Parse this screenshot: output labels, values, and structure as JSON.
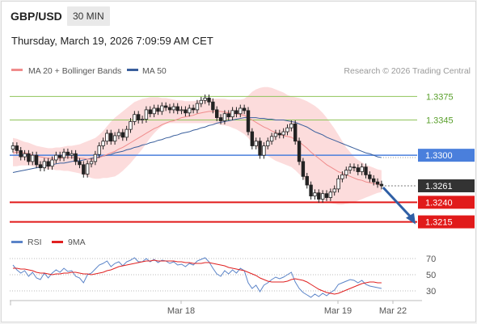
{
  "header": {
    "pair": "GBP/USD",
    "timeframe": "30 MIN",
    "datetime": "Thursday, March 19, 2026 7:09:59 AM CET"
  },
  "legend": {
    "ma20_bb": "MA 20 + Bollinger Bands",
    "ma50": "MA 50",
    "credit": "Research © 2026 Trading Central",
    "rsi": "RSI",
    "rsi_ma": "9MA"
  },
  "colors": {
    "ma20": "#f08c8c",
    "bb_fill": "#fbd6d6",
    "ma50": "#3a5f9c",
    "resistance": "#8fc45a",
    "pivot": "#4a7fdc",
    "support": "#e11a1a",
    "current": "#333333",
    "arrow": "#2f5fa5",
    "rsi": "#5b84c8",
    "rsi_ma": "#e02020"
  },
  "chart_data": [
    {
      "type": "candlestick",
      "ylim": [
        1.3195,
        1.3395
      ],
      "x_labels": [
        "Mar 18",
        "Mar 19",
        "Mar 22"
      ],
      "levels": [
        {
          "value": 1.3375,
          "label": "1.3375",
          "kind": "resistance"
        },
        {
          "value": 1.3345,
          "label": "1.3345",
          "kind": "resistance"
        },
        {
          "value": 1.33,
          "label": "1.3300",
          "kind": "pivot"
        },
        {
          "value": 1.3261,
          "label": "1.3261",
          "kind": "current"
        },
        {
          "value": 1.324,
          "label": "1.3240",
          "kind": "support"
        },
        {
          "value": 1.3215,
          "label": "1.3215",
          "kind": "support"
        }
      ],
      "close": [
        1.3312,
        1.3306,
        1.3298,
        1.3302,
        1.3292,
        1.33,
        1.3288,
        1.3284,
        1.3292,
        1.3286,
        1.3294,
        1.33,
        1.3297,
        1.3304,
        1.33,
        1.3302,
        1.3292,
        1.3288,
        1.3276,
        1.3289,
        1.3292,
        1.3301,
        1.3312,
        1.3318,
        1.3328,
        1.3318,
        1.3325,
        1.3329,
        1.3323,
        1.3333,
        1.3343,
        1.3352,
        1.3345,
        1.3346,
        1.3358,
        1.3353,
        1.336,
        1.3356,
        1.3363,
        1.3361,
        1.3358,
        1.3362,
        1.3357,
        1.3358,
        1.3354,
        1.336,
        1.3358,
        1.3366,
        1.337,
        1.3373,
        1.3368,
        1.3358,
        1.3348,
        1.3344,
        1.3353,
        1.3349,
        1.3357,
        1.3353,
        1.336,
        1.3357,
        1.333,
        1.3312,
        1.3318,
        1.33,
        1.3312,
        1.3318,
        1.3324,
        1.3328,
        1.3326,
        1.333,
        1.3335,
        1.334,
        1.3318,
        1.3292,
        1.3273,
        1.3262,
        1.3248,
        1.3252,
        1.3244,
        1.3251,
        1.3246,
        1.3253,
        1.3257,
        1.327,
        1.3275,
        1.3281,
        1.3285,
        1.3284,
        1.3279,
        1.3285,
        1.3275,
        1.327,
        1.3266,
        1.3263,
        1.3261
      ],
      "ma20": [
        1.3303,
        1.3304,
        1.3304,
        1.3303,
        1.3302,
        1.33,
        1.3299,
        1.3298,
        1.3297,
        1.3296,
        1.3296,
        1.3296,
        1.3296,
        1.3297,
        1.3297,
        1.3297,
        1.3297,
        1.3296,
        1.3296,
        1.3295,
        1.3295,
        1.3295,
        1.3297,
        1.3299,
        1.3301,
        1.3303,
        1.3305,
        1.3308,
        1.331,
        1.3313,
        1.3316,
        1.3319,
        1.3322,
        1.3325,
        1.3328,
        1.3331,
        1.3334,
        1.3336,
        1.3339,
        1.3341,
        1.3343,
        1.3344,
        1.3346,
        1.3348,
        1.3349,
        1.335,
        1.3351,
        1.3353,
        1.3354,
        1.3355,
        1.3356,
        1.3356,
        1.3356,
        1.3356,
        1.3355,
        1.3354,
        1.3354,
        1.3353,
        1.3352,
        1.3351,
        1.3348,
        1.3345,
        1.3342,
        1.3339,
        1.3336,
        1.3334,
        1.3331,
        1.3329,
        1.3327,
        1.3325,
        1.3324,
        1.3323,
        1.332,
        1.3317,
        1.3313,
        1.3309,
        1.3304,
        1.33,
        1.3296,
        1.3292,
        1.3288,
        1.3285,
        1.3282,
        1.3279,
        1.3277,
        1.3275,
        1.3273,
        1.3271,
        1.3269,
        1.3268,
        1.3266,
        1.3265,
        1.3264,
        1.3263,
        1.3262
      ],
      "bb_upper": [
        1.3322,
        1.3321,
        1.3319,
        1.3317,
        1.3316,
        1.3314,
        1.3312,
        1.3311,
        1.331,
        1.3309,
        1.3309,
        1.331,
        1.331,
        1.3311,
        1.3312,
        1.3312,
        1.3313,
        1.3314,
        1.3316,
        1.3318,
        1.332,
        1.3322,
        1.3326,
        1.3331,
        1.3337,
        1.3343,
        1.3348,
        1.3352,
        1.3356,
        1.336,
        1.3364,
        1.3368,
        1.337,
        1.3372,
        1.3373,
        1.3374,
        1.3374,
        1.3374,
        1.3373,
        1.3373,
        1.3372,
        1.3371,
        1.337,
        1.337,
        1.3369,
        1.3369,
        1.3369,
        1.337,
        1.337,
        1.3371,
        1.3372,
        1.3372,
        1.3372,
        1.3372,
        1.3372,
        1.3371,
        1.3371,
        1.3371,
        1.3371,
        1.3372,
        1.3376,
        1.3381,
        1.3384,
        1.3386,
        1.3387,
        1.3387,
        1.3386,
        1.3384,
        1.3382,
        1.338,
        1.3377,
        1.3375,
        1.3374,
        1.3373,
        1.3371,
        1.3369,
        1.3366,
        1.3363,
        1.3359,
        1.3354,
        1.3348,
        1.3341,
        1.3334,
        1.3326,
        1.3318,
        1.331,
        1.3304,
        1.3298,
        1.3294,
        1.3291,
        1.3288,
        1.3286,
        1.3284,
        1.3282,
        1.3281
      ],
      "bb_lower": [
        1.3286,
        1.3286,
        1.3287,
        1.3287,
        1.3287,
        1.3286,
        1.3285,
        1.3284,
        1.3283,
        1.3282,
        1.3282,
        1.3281,
        1.3281,
        1.328,
        1.328,
        1.3279,
        1.3278,
        1.3277,
        1.3275,
        1.3273,
        1.3271,
        1.327,
        1.327,
        1.3271,
        1.3271,
        1.3272,
        1.3273,
        1.3276,
        1.328,
        1.3285,
        1.329,
        1.3296,
        1.3302,
        1.3308,
        1.3315,
        1.3322,
        1.3328,
        1.3333,
        1.3337,
        1.334,
        1.3341,
        1.3341,
        1.3341,
        1.3341,
        1.3341,
        1.3341,
        1.3341,
        1.3341,
        1.3341,
        1.3341,
        1.3341,
        1.334,
        1.334,
        1.3339,
        1.3338,
        1.3337,
        1.3335,
        1.3333,
        1.333,
        1.3327,
        1.3322,
        1.3316,
        1.3311,
        1.3306,
        1.3302,
        1.3299,
        1.3296,
        1.3293,
        1.3291,
        1.3289,
        1.3287,
        1.3285,
        1.3281,
        1.3276,
        1.3271,
        1.3265,
        1.3259,
        1.3253,
        1.3248,
        1.3244,
        1.3241,
        1.3239,
        1.3238,
        1.3237,
        1.3237,
        1.3238,
        1.3239,
        1.324,
        1.3242,
        1.3244,
        1.3246,
        1.3248,
        1.325,
        1.3252,
        1.3253
      ],
      "ma50": [
        1.3278,
        1.3279,
        1.328,
        1.3281,
        1.3282,
        1.3283,
        1.3284,
        1.3285,
        1.3286,
        1.3287,
        1.3288,
        1.3289,
        1.329,
        1.329,
        1.3291,
        1.3292,
        1.3293,
        1.3293,
        1.3294,
        1.3295,
        1.3296,
        1.3297,
        1.3298,
        1.3299,
        1.33,
        1.3301,
        1.3303,
        1.3304,
        1.3305,
        1.3307,
        1.3308,
        1.331,
        1.3311,
        1.3313,
        1.3314,
        1.3316,
        1.3317,
        1.3319,
        1.332,
        1.3322,
        1.3323,
        1.3325,
        1.3326,
        1.3328,
        1.3329,
        1.333,
        1.3332,
        1.3333,
        1.3335,
        1.3336,
        1.3338,
        1.3339,
        1.3341,
        1.3342,
        1.3343,
        1.3344,
        1.3345,
        1.3346,
        1.3347,
        1.3348,
        1.3348,
        1.3348,
        1.3348,
        1.3347,
        1.3347,
        1.3346,
        1.3346,
        1.3345,
        1.3345,
        1.3345,
        1.3344,
        1.3343,
        1.3342,
        1.334,
        1.3338,
        1.3336,
        1.3333,
        1.333,
        1.3328,
        1.3326,
        1.3323,
        1.3321,
        1.3319,
        1.3317,
        1.3315,
        1.3313,
        1.3311,
        1.3309,
        1.3307,
        1.3305,
        1.3303,
        1.3302,
        1.33,
        1.3298,
        1.3297
      ]
    },
    {
      "type": "line",
      "ylim": [
        22,
        78
      ],
      "y_ticks": [
        70,
        50,
        30
      ],
      "series": [
        {
          "name": "RSI",
          "values": [
            62,
            56,
            52,
            55,
            48,
            53,
            46,
            44,
            52,
            46,
            52,
            56,
            53,
            58,
            54,
            55,
            48,
            46,
            40,
            50,
            52,
            57,
            62,
            64,
            67,
            60,
            64,
            66,
            61,
            66,
            68,
            71,
            66,
            66,
            70,
            66,
            69,
            65,
            68,
            67,
            64,
            66,
            62,
            63,
            60,
            64,
            62,
            67,
            69,
            71,
            66,
            58,
            51,
            48,
            55,
            51,
            56,
            52,
            58,
            55,
            40,
            33,
            37,
            29,
            37,
            40,
            44,
            47,
            45,
            47,
            50,
            53,
            41,
            33,
            28,
            25,
            22,
            26,
            23,
            27,
            24,
            28,
            31,
            38,
            40,
            42,
            44,
            43,
            40,
            43,
            38,
            36,
            35,
            34,
            33
          ]
        },
        {
          "name": "9MA",
          "values": [
            58,
            58,
            57,
            57,
            56,
            55,
            53,
            52,
            52,
            51,
            50,
            51,
            51,
            52,
            52,
            53,
            53,
            52,
            51,
            51,
            50,
            51,
            52,
            53,
            55,
            56,
            58,
            60,
            61,
            62,
            63,
            64,
            65,
            66,
            67,
            67,
            68,
            67,
            67,
            67,
            67,
            67,
            66,
            66,
            65,
            65,
            64,
            64,
            64,
            65,
            65,
            64,
            63,
            62,
            61,
            59,
            58,
            57,
            56,
            55,
            53,
            51,
            49,
            46,
            44,
            42,
            41,
            41,
            41,
            41,
            42,
            44,
            45,
            44,
            43,
            41,
            38,
            35,
            32,
            30,
            28,
            27,
            26,
            27,
            29,
            31,
            33,
            35,
            37,
            39,
            40,
            41,
            41,
            40,
            40
          ]
        }
      ]
    }
  ]
}
